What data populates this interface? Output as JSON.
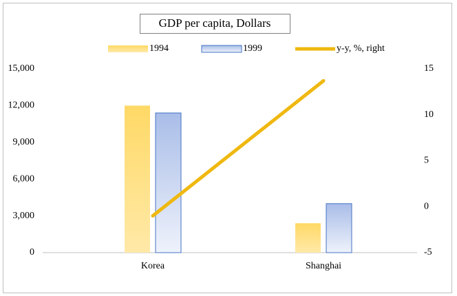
{
  "chart_data": {
    "type": "bar",
    "title": "GDP per capita, Dollars",
    "categories": [
      "Korea",
      "Shanghai"
    ],
    "series": [
      {
        "name": "1994",
        "color": "#ffd966",
        "values": [
          12000,
          2400
        ]
      },
      {
        "name": "1999",
        "color": "#a9bde8",
        "values": [
          11400,
          4000
        ]
      },
      {
        "name": "y-y, %, right",
        "color": "#efb810",
        "type": "line",
        "axis": "y2",
        "values": [
          -1,
          13.7
        ]
      }
    ],
    "ylim": [
      0,
      15000
    ],
    "yticks": [
      0,
      {
        "value": 3000,
        "label": "3,000"
      },
      {
        "value": 6000,
        "label": "6,000"
      },
      {
        "value": 9000,
        "label": "9,000"
      },
      {
        "value": 12000,
        "label": "12,000"
      },
      {
        "value": 15000,
        "label": "15,000"
      }
    ],
    "y2lim": [
      -5,
      15
    ],
    "y2ticks": [
      -5,
      0,
      5,
      10,
      15
    ],
    "grid": false
  }
}
